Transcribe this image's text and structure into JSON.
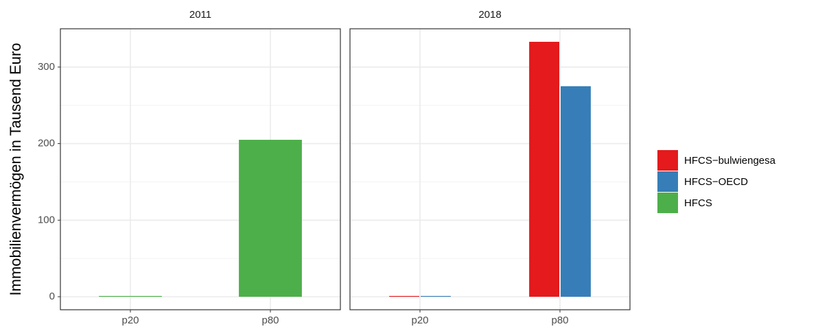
{
  "chart_data": [
    {
      "type": "bar",
      "title": "2011",
      "y_label": "Immobilienvermögen in Tausend Euro",
      "categories": [
        "p20",
        "p80"
      ],
      "series": [
        {
          "name": "HFCS",
          "color": "#4daf4a",
          "values": [
            1,
            205
          ]
        }
      ],
      "ylim": [
        -17,
        350
      ],
      "yticks": [
        0,
        100,
        200,
        300
      ],
      "minor_yticks": [
        50,
        150,
        250
      ],
      "grid": true
    },
    {
      "type": "bar",
      "title": "2018",
      "categories": [
        "p20",
        "p80"
      ],
      "series": [
        {
          "name": "HFCS−bulwiengesa",
          "color": "#e41a1c",
          "values": [
            1,
            333
          ]
        },
        {
          "name": "HFCS−OECD",
          "color": "#377eb8",
          "values": [
            1,
            275
          ]
        }
      ],
      "ylim": [
        -17,
        350
      ],
      "yticks": [
        0,
        100,
        200,
        300
      ],
      "minor_yticks": [
        50,
        150,
        250
      ],
      "grid": true
    }
  ]
}
